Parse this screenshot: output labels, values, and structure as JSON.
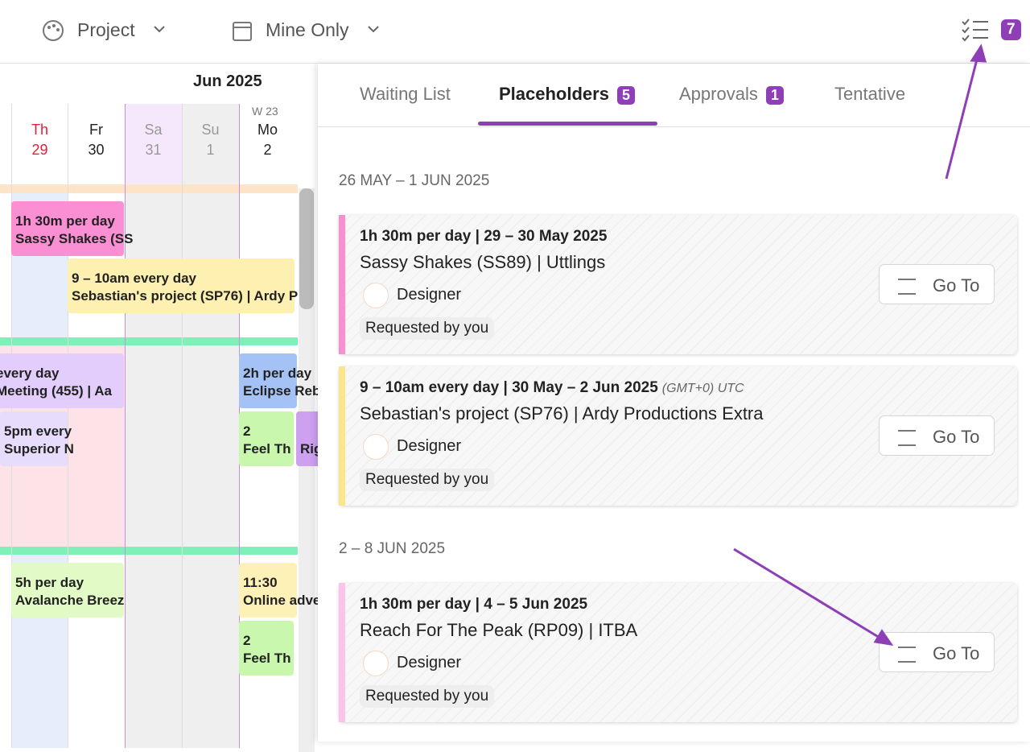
{
  "toolbar": {
    "project_filter": "Project",
    "mine_filter": "Mine Only",
    "badge": "7"
  },
  "calendar": {
    "month": "Jun 2025",
    "week": "W 23",
    "days": [
      {
        "name": "Th",
        "num": "29"
      },
      {
        "name": "Fr",
        "num": "30"
      },
      {
        "name": "Sa",
        "num": "31"
      },
      {
        "name": "Su",
        "num": "1"
      },
      {
        "name": "Mo",
        "num": "2"
      }
    ],
    "events": [
      {
        "line1": "1h 30m per day",
        "line2": "Sassy Shakes (SS"
      },
      {
        "line1": "9 – 10am every day",
        "line2": "Sebastian's project (SP76) | Ardy P"
      },
      {
        "line1": "every day",
        "line2": "Meeting (455) | Aa"
      },
      {
        "line1": "5pm every",
        "line2": "Superior N"
      },
      {
        "line1": "2h per day",
        "line2": "Eclipse Rebr"
      },
      {
        "line1": "2",
        "line2": "Feel Th"
      },
      {
        "line1": "",
        "line2": "Rig"
      },
      {
        "line1": "5h per day",
        "line2": "Avalanche Breez"
      },
      {
        "line1": "11:30",
        "line2": "Online adve"
      },
      {
        "line1": "2",
        "line2": "Feel Th"
      }
    ]
  },
  "panel": {
    "tabs": [
      {
        "label": "Waiting List"
      },
      {
        "label": "Placeholders",
        "count": "5"
      },
      {
        "label": "Approvals",
        "count": "1"
      },
      {
        "label": "Tentative"
      }
    ],
    "groups": [
      {
        "heading": "26 MAY – 1 JUN 2025",
        "items": [
          {
            "summary": "1h 30m per day | 29 – 30 May 2025",
            "title": "Sassy Shakes (SS89) | Uttlings",
            "role": "Designer",
            "status": "Requested by you",
            "button": "Go To",
            "color": "#f98fd0"
          },
          {
            "summary": "9 – 10am every day | 30 May – 2 Jun 2025",
            "timezone": "(GMT+0) UTC",
            "title": "Sebastian's project (SP76) | Ardy Productions Extra",
            "role": "Designer",
            "status": "Requested by you",
            "button": "Go To",
            "color": "#fbe68a"
          }
        ]
      },
      {
        "heading": "2 – 8 JUN 2025",
        "items": [
          {
            "summary": "1h 30m per day | 4 – 5 Jun 2025",
            "title": "Reach For The Peak (RP09) | ITBA",
            "role": "Designer",
            "status": "Requested by you",
            "button": "Go To",
            "color": "#f9c3ea"
          }
        ]
      }
    ]
  }
}
